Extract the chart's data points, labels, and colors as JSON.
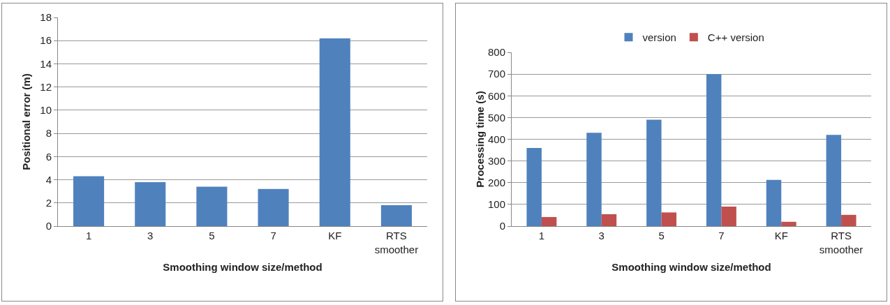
{
  "chart_data": [
    {
      "type": "bar",
      "xlabel": "Smoothing window size/method",
      "ylabel": "Positional error (m)",
      "categories": [
        "1",
        "3",
        "5",
        "7",
        "KF",
        "RTS smoother"
      ],
      "series": [
        {
          "color": "#4f81bd",
          "values": [
            4.3,
            3.8,
            3.4,
            3.2,
            16.2,
            1.8
          ]
        }
      ],
      "ylim": [
        0,
        18
      ],
      "yticks": [
        0,
        2,
        4,
        6,
        8,
        10,
        12,
        14,
        16,
        18
      ],
      "grid": "y",
      "legend": false
    },
    {
      "type": "bar",
      "xlabel": "Smoothing window size/method",
      "ylabel": "Processing time (s)",
      "categories": [
        "1",
        "3",
        "5",
        "7",
        "KF",
        "RTS smoother"
      ],
      "series": [
        {
          "name": "version",
          "color": "#4f81bd",
          "values": [
            360,
            430,
            490,
            700,
            213,
            420
          ]
        },
        {
          "name": "C++ version",
          "color": "#c0504d",
          "values": [
            42,
            55,
            63,
            90,
            20,
            52
          ]
        }
      ],
      "ylim": [
        0,
        800
      ],
      "yticks": [
        0,
        100,
        200,
        300,
        400,
        500,
        600,
        700,
        800
      ],
      "grid": "y",
      "legend": "top"
    }
  ]
}
